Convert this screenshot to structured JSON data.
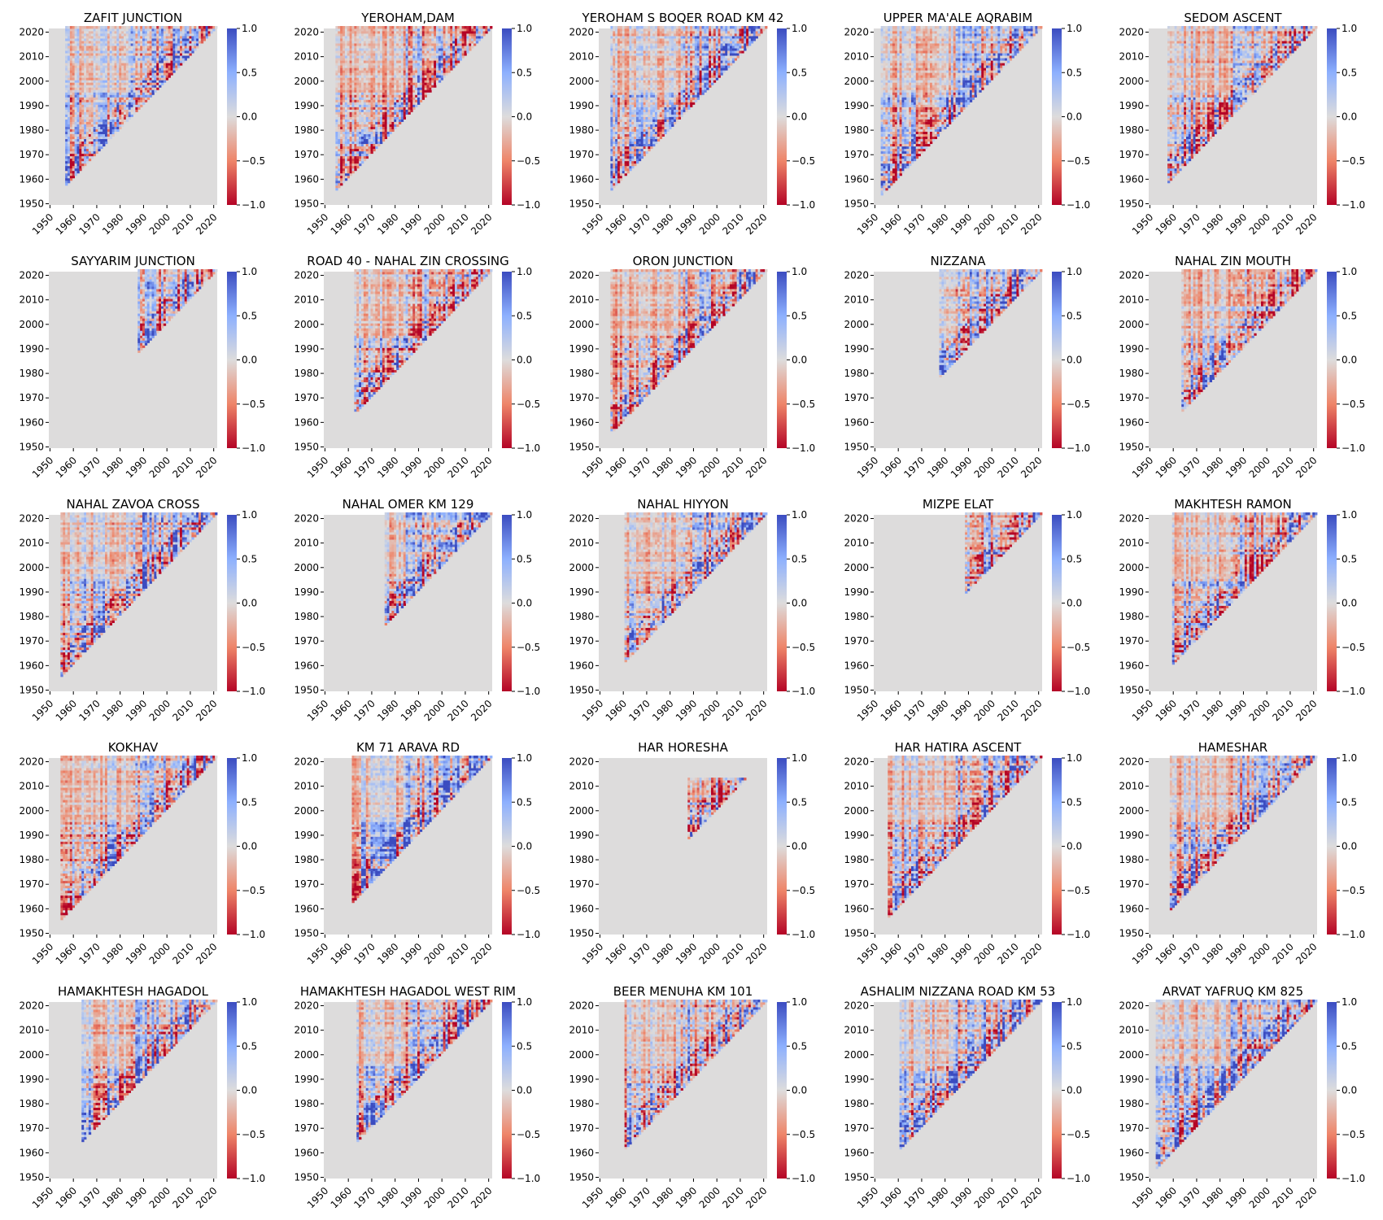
{
  "chart_data": {
    "type": "heatmap",
    "layout": "5x5 grid of triangular heatmaps",
    "x_ticks": [
      1950,
      1960,
      1970,
      1980,
      1990,
      2000,
      2010,
      2020
    ],
    "y_ticks": [
      1950,
      1960,
      1970,
      1980,
      1990,
      2000,
      2010,
      2020
    ],
    "xlim": [
      1950,
      2022
    ],
    "ylim": [
      1950,
      2022
    ],
    "colorbar": {
      "ticks": [
        "1.0",
        "0.5",
        "0.0",
        "−0.5",
        "−1.0"
      ],
      "range": [
        -1,
        1
      ],
      "colormap": "coolwarm_r",
      "low_color": "#b40426",
      "mid_color": "#dddcdc",
      "high_color": "#3b4cc0"
    },
    "background_color": "#dddcdc",
    "panels": [
      {
        "title": "ZAFIT JUNCTION",
        "start_year": 1957,
        "end_year": 2022,
        "seed": 11
      },
      {
        "title": "YEROHAM,DAM",
        "start_year": 1955,
        "end_year": 2022,
        "seed": 23
      },
      {
        "title": "YEROHAM S BOQER ROAD KM 42",
        "start_year": 1955,
        "end_year": 2022,
        "seed": 37
      },
      {
        "title": "UPPER MA'ALE AQRABIM",
        "start_year": 1953,
        "end_year": 2022,
        "seed": 41
      },
      {
        "title": "SEDOM ASCENT",
        "start_year": 1958,
        "end_year": 2022,
        "seed": 53
      },
      {
        "title": "SAYYARIM JUNCTION",
        "start_year": 1988,
        "end_year": 2022,
        "seed": 67
      },
      {
        "title": "ROAD 40 - NAHAL ZIN  CROSSING",
        "start_year": 1963,
        "end_year": 2022,
        "seed": 71
      },
      {
        "title": "ORON JUNCTION",
        "start_year": 1955,
        "end_year": 2022,
        "seed": 83
      },
      {
        "title": "NIZZANA",
        "start_year": 1978,
        "end_year": 2022,
        "seed": 97
      },
      {
        "title": "NAHAL ZIN MOUTH",
        "start_year": 1964,
        "end_year": 2022,
        "seed": 101
      },
      {
        "title": "NAHAL ZAVOA CROSS",
        "start_year": 1955,
        "end_year": 2022,
        "seed": 113
      },
      {
        "title": "NAHAL OMER KM 129",
        "start_year": 1976,
        "end_year": 2022,
        "seed": 127
      },
      {
        "title": "NAHAL HIYYON",
        "start_year": 1961,
        "end_year": 2022,
        "seed": 131
      },
      {
        "title": "MIZPE ELAT",
        "start_year": 1989,
        "end_year": 2022,
        "seed": 139
      },
      {
        "title": "MAKHTESH RAMON",
        "start_year": 1960,
        "end_year": 2022,
        "seed": 149
      },
      {
        "title": "KOKHAV",
        "start_year": 1955,
        "end_year": 2022,
        "seed": 151
      },
      {
        "title": "KM 71 ARAVA RD",
        "start_year": 1962,
        "end_year": 2022,
        "seed": 163
      },
      {
        "title": "HAR HORESHA",
        "start_year": 1988,
        "end_year": 2013,
        "seed": 173
      },
      {
        "title": "HAR HATIRA ASCENT",
        "start_year": 1956,
        "end_year": 2022,
        "seed": 181
      },
      {
        "title": "HAMESHAR",
        "start_year": 1959,
        "end_year": 2022,
        "seed": 191
      },
      {
        "title": "HAMAKHTESH HAGADOL",
        "start_year": 1964,
        "end_year": 2022,
        "seed": 193
      },
      {
        "title": "HAMAKHTESH HAGADOL WEST RIM",
        "start_year": 1964,
        "end_year": 2022,
        "seed": 197
      },
      {
        "title": "BEER MENUHA KM 101",
        "start_year": 1961,
        "end_year": 2022,
        "seed": 211
      },
      {
        "title": "ASHALIM NIZZANA ROAD KM 53",
        "start_year": 1961,
        "end_year": 2022,
        "seed": 223
      },
      {
        "title": "ARVAT YAFRUQ KM 825",
        "start_year": 1953,
        "end_year": 2022,
        "seed": 227
      }
    ]
  }
}
